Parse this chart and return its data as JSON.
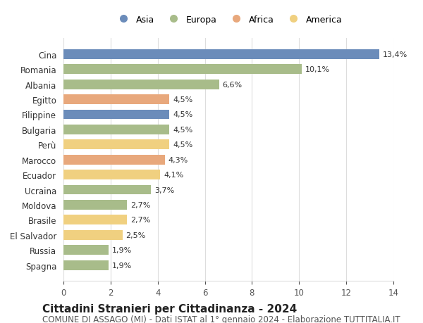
{
  "countries": [
    "Spagna",
    "Russia",
    "El Salvador",
    "Brasile",
    "Moldova",
    "Ucraina",
    "Ecuador",
    "Marocco",
    "Perù",
    "Bulgaria",
    "Filippine",
    "Egitto",
    "Albania",
    "Romania",
    "Cina"
  ],
  "values": [
    1.9,
    1.9,
    2.5,
    2.7,
    2.7,
    3.7,
    4.1,
    4.3,
    4.5,
    4.5,
    4.5,
    4.5,
    6.6,
    10.1,
    13.4
  ],
  "labels": [
    "1,9%",
    "1,9%",
    "2,5%",
    "2,7%",
    "2,7%",
    "3,7%",
    "4,1%",
    "4,3%",
    "4,5%",
    "4,5%",
    "4,5%",
    "4,5%",
    "6,6%",
    "10,1%",
    "13,4%"
  ],
  "continents": [
    "Europa",
    "Europa",
    "America",
    "America",
    "Europa",
    "Europa",
    "America",
    "Africa",
    "America",
    "Europa",
    "Asia",
    "Africa",
    "Europa",
    "Europa",
    "Asia"
  ],
  "colors": {
    "Asia": "#6b8cba",
    "Europa": "#a8bc8a",
    "Africa": "#e8a87c",
    "America": "#f0d080"
  },
  "legend_order": [
    "Asia",
    "Europa",
    "Africa",
    "America"
  ],
  "title": "Cittadini Stranieri per Cittadinanza - 2024",
  "subtitle": "COMUNE DI ASSAGO (MI) - Dati ISTAT al 1° gennaio 2024 - Elaborazione TUTTITALIA.IT",
  "xlim": [
    0,
    14
  ],
  "xticks": [
    0,
    2,
    4,
    6,
    8,
    10,
    12,
    14
  ],
  "background_color": "#ffffff",
  "grid_color": "#dddddd",
  "bar_height": 0.65,
  "title_fontsize": 11,
  "subtitle_fontsize": 8.5,
  "label_fontsize": 8,
  "tick_fontsize": 8.5,
  "legend_fontsize": 9
}
